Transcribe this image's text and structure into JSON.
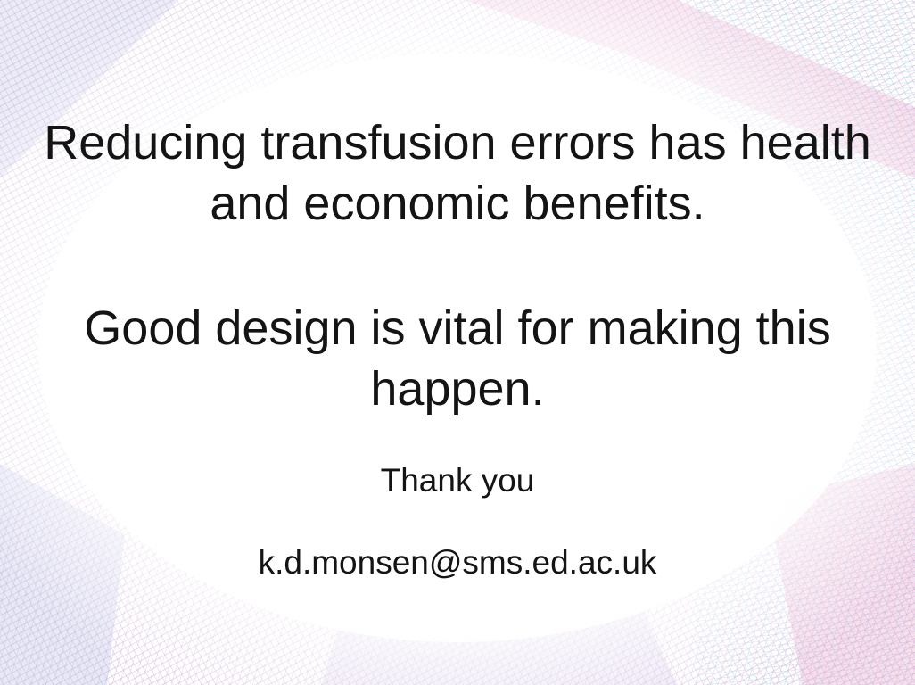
{
  "slide": {
    "headline_1": "Reducing transfusion errors has health and economic benefits.",
    "headline_2": "Good design is vital for making this happen.",
    "thanks": "Thank you",
    "email": "k.d.monsen@sms.ed.ac.uk"
  },
  "theme": {
    "pink": "#d9a0c8",
    "lavender": "#aeb4de",
    "cyan": "#9fd6e3",
    "text": "#141414"
  }
}
